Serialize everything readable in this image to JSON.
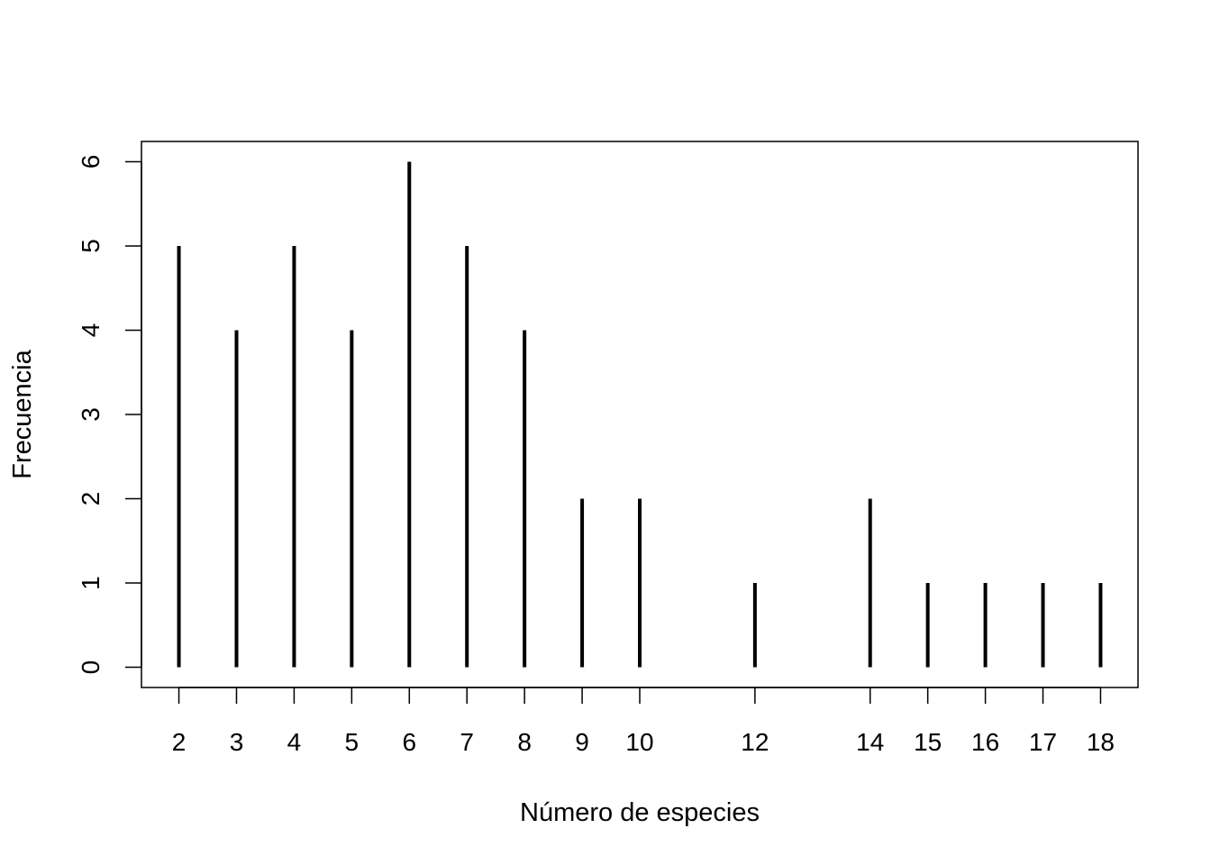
{
  "chart_data": {
    "type": "bar",
    "style": "vertical lines (R plot type h)",
    "title": "",
    "xlabel": "Número de especies",
    "ylabel": "Frecuencia",
    "x": [
      2,
      3,
      4,
      5,
      6,
      7,
      8,
      9,
      10,
      12,
      14,
      15,
      16,
      17,
      18
    ],
    "values": [
      5,
      4,
      5,
      4,
      6,
      5,
      4,
      2,
      2,
      1,
      2,
      1,
      1,
      1,
      1
    ],
    "xticks": [
      "2",
      "3",
      "4",
      "5",
      "6",
      "7",
      "8",
      "9",
      "10",
      "12",
      "14",
      "15",
      "16",
      "17",
      "18"
    ],
    "yticks": [
      "0",
      "1",
      "2",
      "3",
      "4",
      "5",
      "6"
    ],
    "xlim": [
      1.35,
      18.65
    ],
    "ylim": [
      -0.24,
      6.24
    ],
    "grid": false,
    "legend": "none",
    "colors": {
      "line": "#000000",
      "axis": "#000000",
      "background": "#ffffff"
    }
  }
}
